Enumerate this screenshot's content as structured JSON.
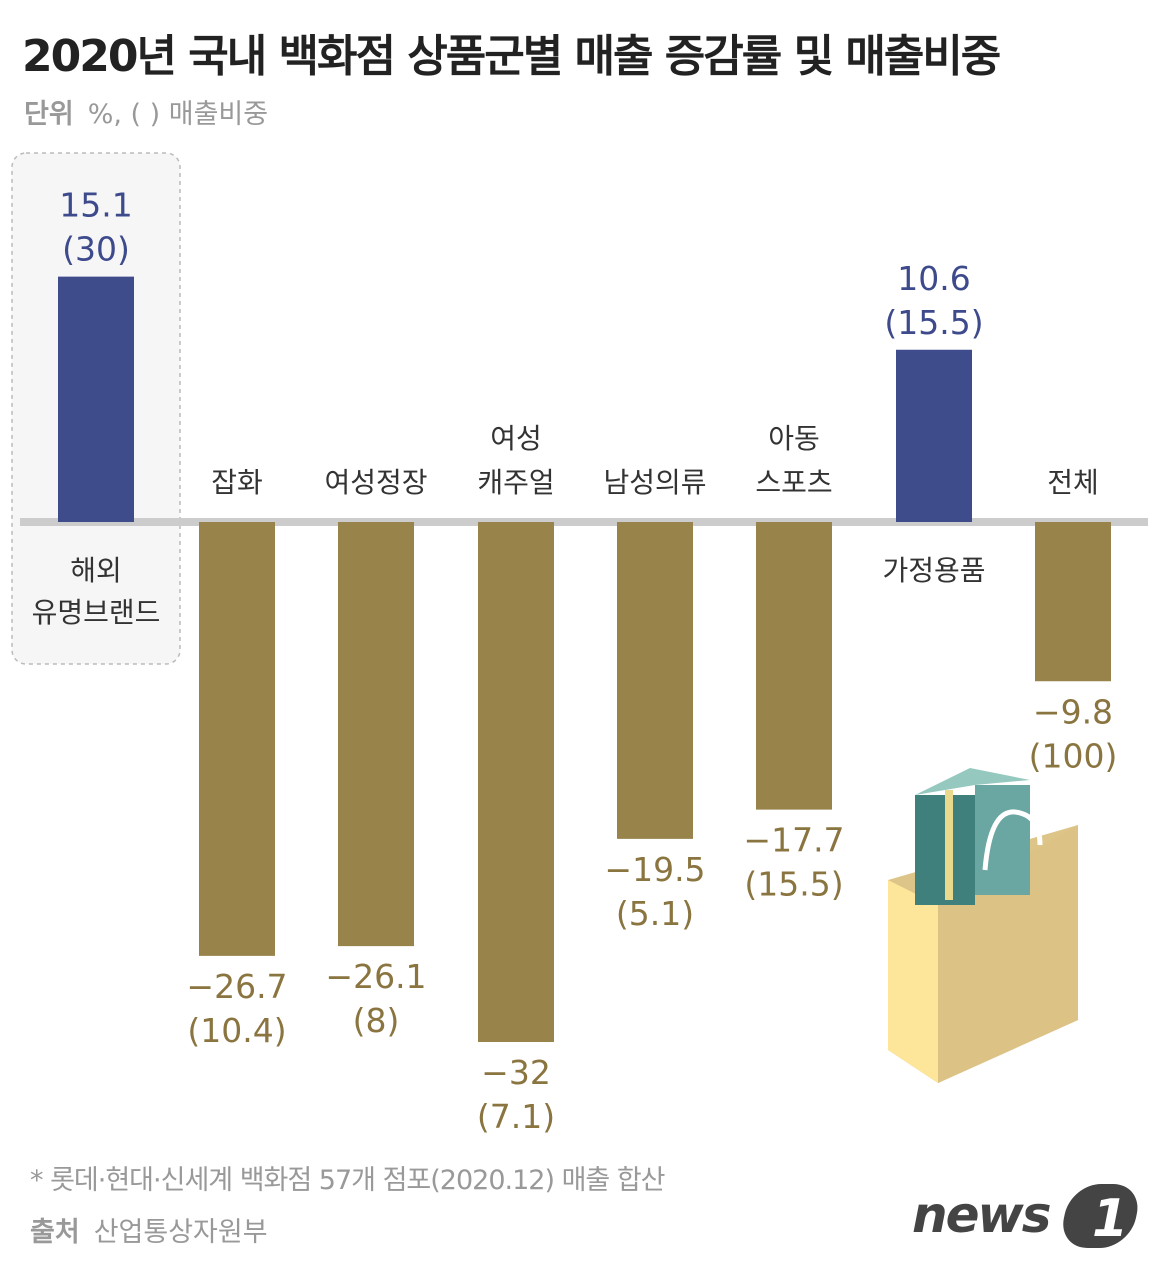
{
  "title": "2020년 국내 백화점 상품군별 매출 증감률 및 매출비중",
  "unit_label": "단위",
  "unit_text": "%, (   ) 매출비중",
  "note": "* 롯데·현대·신세계 백화점 57개 점포(2020.12) 매출 합산",
  "source_label": "출처",
  "source_text": "산업통상자원부",
  "logo_text": "news1",
  "colors": {
    "positive": "#3f4c8c",
    "negative": "#98844a",
    "positive_text": "#3d4a8c",
    "negative_text": "#8a7540",
    "baseline": "#cccccc"
  },
  "chart_data": {
    "type": "bar",
    "categories": [
      "해외\n유명브랜드",
      "잡화",
      "여성정장",
      "여성\n캐주얼",
      "남성의류",
      "아동\n스포츠",
      "가정용품",
      "전체"
    ],
    "values": [
      15.1,
      -26.7,
      -26.1,
      -32,
      -19.5,
      -17.7,
      10.6,
      -9.8
    ],
    "value_labels": [
      "15.1",
      "−26.7",
      "−26.1",
      "−32",
      "−19.5",
      "−17.7",
      "10.6",
      "−9.8"
    ],
    "share_labels": [
      "(30)",
      "(10.4)",
      "(8)",
      "(7.1)",
      "(5.1)",
      "(15.5)",
      "(15.5)",
      "(100)"
    ],
    "highlighted": "해외\n유명브랜드",
    "grid": false
  }
}
